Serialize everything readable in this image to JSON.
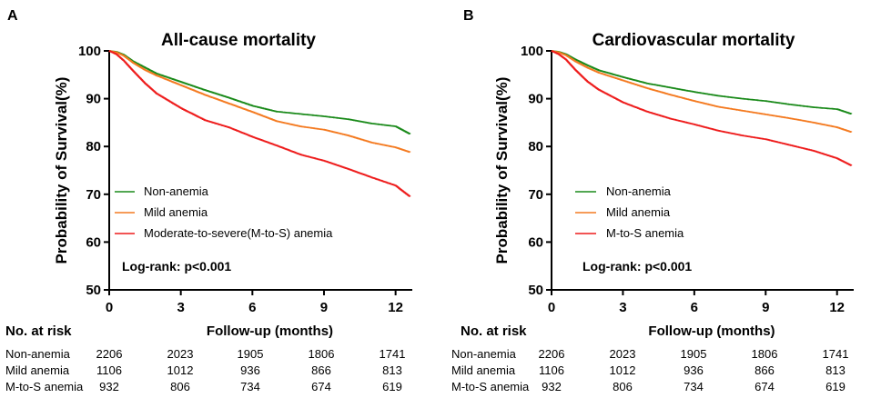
{
  "chart_data": [
    {
      "panel_label": "A",
      "type": "line",
      "title": "All-cause mortality",
      "xlabel": "Follow-up (months)",
      "ylabel": "Probability of Survival(%)",
      "xlim": [
        0,
        12.7
      ],
      "ylim": [
        50,
        100
      ],
      "xticks": [
        0,
        3,
        6,
        9,
        12
      ],
      "yticks": [
        50,
        60,
        70,
        80,
        90,
        100
      ],
      "legend_position": "lower-left",
      "annotation": "Log-rank: p<0.001",
      "series": [
        {
          "name": "Non-anemia",
          "color": "#1a8a1a",
          "x": [
            0,
            0.3,
            0.6,
            1,
            1.5,
            2,
            3,
            4,
            5,
            6,
            7,
            8,
            9,
            10,
            11,
            12,
            12.6
          ],
          "y": [
            100,
            99.8,
            99.2,
            97.8,
            96.5,
            95.2,
            93.5,
            91.8,
            90.2,
            88.5,
            87.3,
            86.8,
            86.3,
            85.7,
            84.8,
            84.2,
            82.6
          ]
        },
        {
          "name": "Mild anemia",
          "color": "#f47a20",
          "x": [
            0,
            0.3,
            0.6,
            1,
            1.5,
            2,
            3,
            4,
            5,
            6,
            7,
            8,
            9,
            10,
            11,
            12,
            12.6
          ],
          "y": [
            100,
            99.7,
            99.0,
            97.5,
            96.0,
            94.8,
            92.8,
            90.8,
            89.0,
            87.2,
            85.3,
            84.2,
            83.5,
            82.3,
            80.8,
            79.8,
            78.8
          ]
        },
        {
          "name": "Moderate-to-severe(M-to-S) anemia",
          "color": "#ee1c1c",
          "x": [
            0,
            0.3,
            0.6,
            1,
            1.5,
            2,
            3,
            4,
            5,
            6,
            7,
            8,
            9,
            10,
            11,
            12,
            12.6
          ],
          "y": [
            100,
            99.3,
            98.0,
            95.8,
            93.2,
            91.0,
            88.0,
            85.5,
            84.0,
            82.0,
            80.2,
            78.3,
            77.0,
            75.3,
            73.5,
            71.8,
            69.5
          ]
        }
      ],
      "risk_table": {
        "title": "No. at risk",
        "rows": [
          {
            "label": "Non-anemia",
            "values": [
              "2206",
              "2023",
              "1905",
              "1806",
              "1741"
            ]
          },
          {
            "label": "Mild anemia",
            "values": [
              "1106",
              "1012",
              "936",
              "866",
              "813"
            ]
          },
          {
            "label": "M-to-S anemia",
            "values": [
              "932",
              "806",
              "734",
              "674",
              "619"
            ]
          }
        ]
      }
    },
    {
      "panel_label": "B",
      "type": "line",
      "title": "Cardiovascular mortality",
      "xlabel": "Follow-up (months)",
      "ylabel": "Probability of Survival(%)",
      "xlim": [
        0,
        12.7
      ],
      "ylim": [
        50,
        100
      ],
      "xticks": [
        0,
        3,
        6,
        9,
        12
      ],
      "yticks": [
        50,
        60,
        70,
        80,
        90,
        100
      ],
      "legend_position": "lower-left",
      "annotation": "Log-rank: p<0.001",
      "series": [
        {
          "name": "Non-anemia",
          "color": "#1a8a1a",
          "x": [
            0,
            0.3,
            0.6,
            1,
            1.5,
            2,
            3,
            4,
            5,
            6,
            7,
            8,
            9,
            10,
            11,
            12,
            12.6
          ],
          "y": [
            100,
            99.8,
            99.3,
            98.2,
            97.0,
            95.9,
            94.5,
            93.2,
            92.3,
            91.4,
            90.6,
            90.0,
            89.5,
            88.8,
            88.2,
            87.8,
            86.8
          ]
        },
        {
          "name": "Mild anemia",
          "color": "#f47a20",
          "x": [
            0,
            0.3,
            0.6,
            1,
            1.5,
            2,
            3,
            4,
            5,
            6,
            7,
            8,
            9,
            10,
            11,
            12,
            12.6
          ],
          "y": [
            100,
            99.7,
            99.1,
            97.8,
            96.5,
            95.4,
            93.8,
            92.2,
            90.8,
            89.5,
            88.3,
            87.5,
            86.7,
            85.9,
            85.0,
            84.0,
            83.0
          ]
        },
        {
          "name": "M-to-S anemia",
          "color": "#ee1c1c",
          "x": [
            0,
            0.3,
            0.6,
            1,
            1.5,
            2,
            3,
            4,
            5,
            6,
            7,
            8,
            9,
            10,
            11,
            12,
            12.6
          ],
          "y": [
            100,
            99.3,
            98.2,
            96.0,
            93.6,
            91.8,
            89.2,
            87.3,
            85.8,
            84.6,
            83.3,
            82.3,
            81.5,
            80.3,
            79.1,
            77.5,
            76.0
          ]
        }
      ],
      "risk_table": {
        "title": "No. at risk",
        "rows": [
          {
            "label": "Non-anemia",
            "values": [
              "2206",
              "2023",
              "1905",
              "1806",
              "1741"
            ]
          },
          {
            "label": "Mild anemia",
            "values": [
              "1106",
              "1012",
              "936",
              "866",
              "813"
            ]
          },
          {
            "label": "M-to-S anemia",
            "values": [
              "932",
              "806",
              "734",
              "674",
              "619"
            ]
          }
        ]
      }
    }
  ]
}
